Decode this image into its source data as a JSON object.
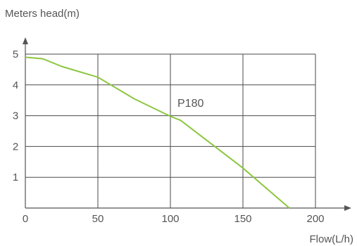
{
  "chart_data": {
    "type": "line",
    "ylabel": "Meters head(m)",
    "xlabel": "Flow(L/h)",
    "x_ticks": [
      0,
      50,
      100,
      150,
      200
    ],
    "y_ticks": [
      1,
      2,
      3,
      4,
      5
    ],
    "xlim": [
      0,
      200
    ],
    "ylim": [
      0,
      5
    ],
    "grid": true,
    "series": [
      {
        "name": "P180",
        "color": "#8cc63f",
        "x": [
          0,
          12,
          25,
          50,
          75,
          100,
          107,
          125,
          150,
          182
        ],
        "y": [
          4.9,
          4.85,
          4.6,
          4.25,
          3.55,
          2.98,
          2.85,
          2.2,
          1.3,
          0
        ]
      }
    ]
  }
}
